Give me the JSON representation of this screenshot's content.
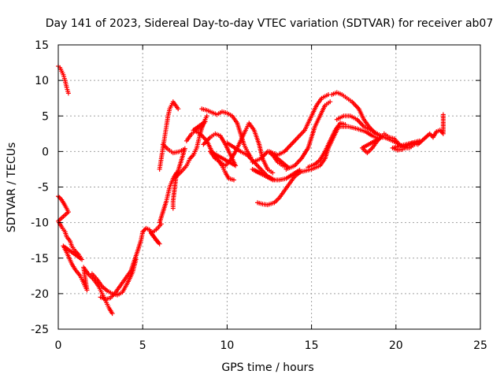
{
  "chart_data": {
    "type": "scatter",
    "title": "Day 141 of 2023, Sidereal Day-to-day VTEC variation (SDTVAR) for receiver ab07",
    "xlabel": "GPS time / hours",
    "ylabel": "SDTVAR / TECUs",
    "xlim": [
      0,
      25
    ],
    "ylim": [
      -25,
      15
    ],
    "xticks": [
      0,
      5,
      10,
      15,
      20,
      25
    ],
    "yticks": [
      -25,
      -20,
      -15,
      -10,
      -5,
      0,
      5,
      10,
      15
    ],
    "grid": true,
    "marker": "+",
    "color": "#ff0000",
    "series": [
      {
        "name": "",
        "points": [
          [
            0.0,
            12.0
          ],
          [
            0.1,
            11.8
          ],
          [
            0.2,
            11.3
          ],
          [
            0.3,
            10.8
          ],
          [
            0.4,
            10.0
          ],
          [
            0.5,
            9.0
          ],
          [
            0.6,
            8.2
          ],
          [
            0.0,
            -6.3
          ],
          [
            0.2,
            -6.8
          ],
          [
            0.4,
            -7.6
          ],
          [
            0.6,
            -8.5
          ],
          [
            0.0,
            -9.8
          ],
          [
            0.2,
            -10.6
          ],
          [
            0.4,
            -11.3
          ],
          [
            0.5,
            -12.0
          ],
          [
            0.7,
            -12.6
          ],
          [
            0.8,
            -13.3
          ],
          [
            1.0,
            -14.0
          ],
          [
            1.2,
            -14.5
          ],
          [
            1.4,
            -15.2
          ],
          [
            0.3,
            -13.3
          ],
          [
            0.5,
            -14.2
          ],
          [
            0.8,
            -15.8
          ],
          [
            1.0,
            -16.6
          ],
          [
            1.3,
            -17.5
          ],
          [
            1.5,
            -18.5
          ],
          [
            1.7,
            -19.5
          ],
          [
            1.5,
            -16.3
          ],
          [
            1.8,
            -17.3
          ],
          [
            2.1,
            -18.0
          ],
          [
            2.4,
            -19.0
          ],
          [
            2.6,
            -20.0
          ],
          [
            2.8,
            -21.0
          ],
          [
            3.0,
            -22.0
          ],
          [
            3.2,
            -22.8
          ],
          [
            2.0,
            -17.2
          ],
          [
            2.3,
            -18.0
          ],
          [
            2.6,
            -19.0
          ],
          [
            2.9,
            -19.6
          ],
          [
            3.2,
            -20.0
          ],
          [
            3.5,
            -20.2
          ],
          [
            3.8,
            -19.8
          ],
          [
            4.1,
            -18.5
          ],
          [
            4.4,
            -17.0
          ],
          [
            4.6,
            -15.2
          ],
          [
            2.5,
            -20.5
          ],
          [
            2.8,
            -20.8
          ],
          [
            3.1,
            -20.6
          ],
          [
            3.4,
            -19.8
          ],
          [
            3.7,
            -18.8
          ],
          [
            4.0,
            -17.8
          ],
          [
            4.3,
            -16.8
          ],
          [
            4.7,
            -14.0
          ],
          [
            4.9,
            -12.5
          ],
          [
            5.0,
            -11.3
          ],
          [
            5.2,
            -10.8
          ],
          [
            5.4,
            -11.0
          ],
          [
            5.6,
            -11.8
          ],
          [
            5.8,
            -12.5
          ],
          [
            6.0,
            -13.0
          ],
          [
            5.5,
            -11.5
          ],
          [
            5.8,
            -11.0
          ],
          [
            6.1,
            -10.2
          ],
          [
            6.0,
            -10.0
          ],
          [
            6.2,
            -8.5
          ],
          [
            6.4,
            -7.0
          ],
          [
            6.5,
            -6.0
          ],
          [
            6.6,
            -5.0
          ],
          [
            6.8,
            -3.8
          ],
          [
            7.0,
            -3.0
          ],
          [
            6.8,
            -7.0
          ],
          [
            6.8,
            -8.0
          ],
          [
            6.0,
            -2.5
          ],
          [
            6.1,
            -1.0
          ],
          [
            6.2,
            0.5
          ],
          [
            6.3,
            2.0
          ],
          [
            6.4,
            3.5
          ],
          [
            6.5,
            5.0
          ],
          [
            6.6,
            6.0
          ],
          [
            6.7,
            6.5
          ],
          [
            6.8,
            7.0
          ],
          [
            7.1,
            6.0
          ],
          [
            6.2,
            1.0
          ],
          [
            6.5,
            0.3
          ],
          [
            6.8,
            -0.2
          ],
          [
            7.2,
            0.0
          ],
          [
            7.5,
            0.4
          ],
          [
            7.0,
            -3.5
          ],
          [
            7.3,
            -2.8
          ],
          [
            7.6,
            -2.0
          ],
          [
            7.8,
            -1.0
          ],
          [
            8.0,
            -0.5
          ],
          [
            8.2,
            0.5
          ],
          [
            8.3,
            1.5
          ],
          [
            8.4,
            2.5
          ],
          [
            8.6,
            4.0
          ],
          [
            8.8,
            5.0
          ],
          [
            7.6,
            1.5
          ],
          [
            7.9,
            2.5
          ],
          [
            8.2,
            3.0
          ],
          [
            8.5,
            3.5
          ],
          [
            8.7,
            4.2
          ],
          [
            8.0,
            3.0
          ],
          [
            8.4,
            2.5
          ],
          [
            8.8,
            1.5
          ],
          [
            9.1,
            0.0
          ],
          [
            9.4,
            -1.0
          ],
          [
            9.7,
            -2.0
          ],
          [
            9.9,
            -3.0
          ],
          [
            10.1,
            -3.8
          ],
          [
            10.4,
            -4.0
          ],
          [
            8.5,
            6.0
          ],
          [
            8.8,
            5.8
          ],
          [
            9.1,
            5.5
          ],
          [
            9.4,
            5.2
          ],
          [
            9.7,
            5.6
          ],
          [
            10.0,
            5.4
          ],
          [
            10.3,
            5.0
          ],
          [
            10.6,
            4.0
          ],
          [
            10.8,
            2.5
          ],
          [
            11.0,
            1.0
          ],
          [
            11.2,
            0.0
          ],
          [
            11.4,
            -0.8
          ],
          [
            8.6,
            1.0
          ],
          [
            9.0,
            2.0
          ],
          [
            9.3,
            2.5
          ],
          [
            9.6,
            2.2
          ],
          [
            9.9,
            1.0
          ],
          [
            10.2,
            -0.5
          ],
          [
            10.5,
            -2.0
          ],
          [
            9.0,
            0.0
          ],
          [
            9.3,
            -1.0
          ],
          [
            9.6,
            -1.5
          ],
          [
            9.9,
            -2.0
          ],
          [
            10.2,
            -1.2
          ],
          [
            10.5,
            0.0
          ],
          [
            10.8,
            1.5
          ],
          [
            11.1,
            3.0
          ],
          [
            11.3,
            4.0
          ],
          [
            11.6,
            3.0
          ],
          [
            11.9,
            1.0
          ],
          [
            12.1,
            -1.0
          ],
          [
            12.4,
            -2.5
          ],
          [
            12.7,
            -3.0
          ],
          [
            10.0,
            1.2
          ],
          [
            10.4,
            0.6
          ],
          [
            10.8,
            0.0
          ],
          [
            11.2,
            -0.5
          ],
          [
            11.6,
            -1.5
          ],
          [
            12.0,
            -2.5
          ],
          [
            12.4,
            -3.5
          ],
          [
            12.8,
            -4.0
          ],
          [
            11.5,
            -2.5
          ],
          [
            11.9,
            -3.0
          ],
          [
            12.3,
            -3.5
          ],
          [
            12.7,
            -4.0
          ],
          [
            13.1,
            -4.0
          ],
          [
            13.5,
            -3.8
          ],
          [
            13.9,
            -3.2
          ],
          [
            14.3,
            -2.6
          ],
          [
            11.8,
            -7.2
          ],
          [
            12.1,
            -7.4
          ],
          [
            12.4,
            -7.5
          ],
          [
            12.8,
            -7.2
          ],
          [
            13.1,
            -6.5
          ],
          [
            13.4,
            -5.5
          ],
          [
            13.7,
            -4.5
          ],
          [
            14.0,
            -3.5
          ],
          [
            14.4,
            -2.8
          ],
          [
            11.5,
            -1.5
          ],
          [
            12.0,
            -1.0
          ],
          [
            12.4,
            0.0
          ],
          [
            12.7,
            -0.5
          ],
          [
            13.0,
            -1.5
          ],
          [
            13.3,
            -2.0
          ],
          [
            13.6,
            -2.2
          ],
          [
            12.5,
            0.0
          ],
          [
            13.0,
            -0.5
          ],
          [
            13.4,
            0.0
          ],
          [
            13.8,
            1.0
          ],
          [
            14.2,
            2.0
          ],
          [
            14.6,
            3.0
          ],
          [
            15.0,
            5.0
          ],
          [
            15.3,
            6.5
          ],
          [
            15.6,
            7.5
          ],
          [
            16.0,
            8.0
          ],
          [
            13.5,
            -2.5
          ],
          [
            14.0,
            -2.0
          ],
          [
            14.4,
            -1.0
          ],
          [
            14.8,
            0.5
          ],
          [
            15.0,
            2.0
          ],
          [
            15.2,
            3.5
          ],
          [
            15.5,
            5.0
          ],
          [
            15.8,
            6.5
          ],
          [
            16.1,
            7.0
          ],
          [
            14.5,
            -2.8
          ],
          [
            15.0,
            -2.5
          ],
          [
            15.5,
            -2.0
          ],
          [
            15.8,
            -1.0
          ],
          [
            16.0,
            0.5
          ],
          [
            16.3,
            2.0
          ],
          [
            16.6,
            3.5
          ],
          [
            14.8,
            -2.2
          ],
          [
            15.2,
            -1.8
          ],
          [
            15.5,
            -1.2
          ],
          [
            15.8,
            0.0
          ],
          [
            16.1,
            1.5
          ],
          [
            16.4,
            3.0
          ],
          [
            16.7,
            4.0
          ],
          [
            17.0,
            3.8
          ],
          [
            16.2,
            8.0
          ],
          [
            16.5,
            8.3
          ],
          [
            16.8,
            8.0
          ],
          [
            17.1,
            7.5
          ],
          [
            17.4,
            7.0
          ],
          [
            17.8,
            6.0
          ],
          [
            18.1,
            4.5
          ],
          [
            18.4,
            3.5
          ],
          [
            18.8,
            2.5
          ],
          [
            19.2,
            2.0
          ],
          [
            16.5,
            4.5
          ],
          [
            16.9,
            5.0
          ],
          [
            17.3,
            5.0
          ],
          [
            17.7,
            4.5
          ],
          [
            18.1,
            3.5
          ],
          [
            18.5,
            3.0
          ],
          [
            18.9,
            2.5
          ],
          [
            19.3,
            2.0
          ],
          [
            19.8,
            1.5
          ],
          [
            20.2,
            1.0
          ],
          [
            16.7,
            3.5
          ],
          [
            17.2,
            3.5
          ],
          [
            17.7,
            3.2
          ],
          [
            18.2,
            2.8
          ],
          [
            18.6,
            2.2
          ],
          [
            19.0,
            1.8
          ],
          [
            18.0,
            0.5
          ],
          [
            18.3,
            -0.2
          ],
          [
            18.6,
            0.5
          ],
          [
            18.9,
            1.5
          ],
          [
            19.2,
            2.2
          ],
          [
            19.3,
            2.5
          ],
          [
            19.6,
            2.0
          ],
          [
            19.9,
            1.8
          ],
          [
            20.2,
            1.0
          ],
          [
            20.5,
            0.5
          ],
          [
            20.8,
            0.5
          ],
          [
            21.1,
            1.0
          ],
          [
            21.4,
            1.5
          ],
          [
            19.8,
            0.5
          ],
          [
            20.1,
            0.2
          ],
          [
            20.4,
            0.3
          ],
          [
            20.7,
            0.8
          ],
          [
            21.0,
            1.2
          ],
          [
            21.3,
            1.0
          ],
          [
            22.0,
            2.5
          ],
          [
            22.2,
            2.0
          ],
          [
            22.4,
            2.8
          ],
          [
            22.6,
            3.0
          ],
          [
            22.8,
            2.5
          ],
          [
            22.8,
            5.2
          ]
        ]
      }
    ]
  }
}
